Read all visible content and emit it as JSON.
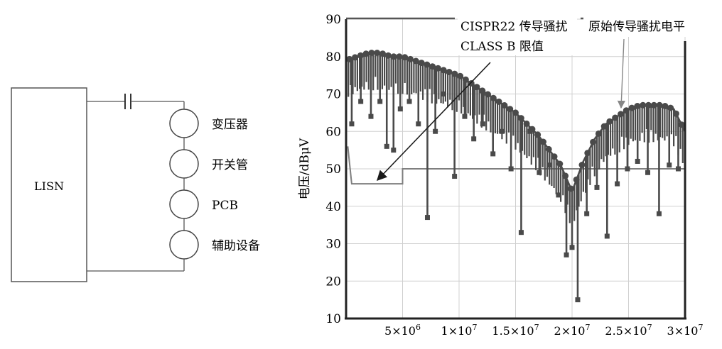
{
  "colors": {
    "line": "#333333",
    "limit": "#7f7f7f",
    "data": "#4a4a4a",
    "grid": "#d0d0d0"
  },
  "circuit": {
    "lisn_label": "LISN",
    "components": [
      "变压器",
      "开关管",
      "PCB",
      "辅助设备"
    ]
  },
  "chart_data": {
    "type": "line",
    "xlabel": "",
    "ylabel": "电压/dBμV",
    "ylim": [
      10,
      90
    ],
    "xlim": [
      0,
      30000000.0
    ],
    "y_ticks": [
      "10",
      "20",
      "30",
      "40",
      "50",
      "60",
      "70",
      "80",
      "90"
    ],
    "x_ticks": [
      {
        "value": 5000000.0,
        "mant": "5×10",
        "exp": "6"
      },
      {
        "value": 10000000.0,
        "mant": "1×10",
        "exp": "7"
      },
      {
        "value": 15000000.0,
        "mant": "1.5×10",
        "exp": "7"
      },
      {
        "value": 20000000.0,
        "mant": "2×10",
        "exp": "7"
      },
      {
        "value": 25000000.0,
        "mant": "2.5×10",
        "exp": "7"
      },
      {
        "value": 30000000.0,
        "mant": "3×10",
        "exp": "7"
      }
    ],
    "annotations": {
      "limit_line1": "CISPR22 传导骚扰",
      "limit_line2": "CLASS B 限值",
      "original": "原始传导骚扰电平"
    },
    "series": [
      {
        "role": "limit",
        "x": [
          150000.0,
          500000.0,
          500000.0,
          5000000.0,
          5000000.0,
          30000000.0
        ],
        "y": [
          56,
          46,
          46,
          46,
          50,
          50
        ]
      },
      {
        "role": "envelope",
        "x": [
          0,
          1000000.0,
          2000000.0,
          3000000.0,
          4000000.0,
          5000000.0,
          6000000.0,
          7000000.0,
          8000000.0,
          9000000.0,
          10000000.0,
          11000000.0,
          12000000.0,
          13000000.0,
          14000000.0,
          15000000.0,
          16000000.0,
          17000000.0,
          18000000.0,
          19000000.0,
          20000000.0,
          20500000.0,
          21000000.0,
          22000000.0,
          23000000.0,
          24000000.0,
          25000000.0,
          26000000.0,
          27000000.0,
          28000000.0,
          29000000.0,
          30000000.0
        ],
        "y": [
          79,
          80,
          81,
          81,
          80,
          80,
          79,
          78,
          77,
          76,
          75,
          73,
          71,
          69,
          67,
          65,
          62,
          59,
          55,
          51,
          44,
          48,
          52,
          58,
          62,
          64,
          66,
          67,
          67,
          67,
          66,
          60
        ]
      },
      {
        "role": "dips",
        "x": [
          500000.0,
          1300000.0,
          2200000.0,
          3000000.0,
          3600000.0,
          4200000.0,
          4800000.0,
          5600000.0,
          6400000.0,
          7200000.0,
          7900000.0,
          8600000.0,
          9600000.0,
          10500000.0,
          11300000.0,
          12100000.0,
          13000000.0,
          13800000.0,
          14600000.0,
          15500000.0,
          16300000.0,
          17100000.0,
          18000000.0,
          18800000.0,
          19500000.0,
          20000000.0,
          20500000.0,
          21300000.0,
          22200000.0,
          23100000.0,
          24000000.0,
          24900000.0,
          25800000.0,
          26700000.0,
          27700000.0,
          28600000.0,
          29400000.0
        ],
        "y": [
          62,
          68,
          64,
          68,
          56,
          55,
          66,
          68,
          62,
          37,
          60,
          70,
          48,
          64,
          58,
          62,
          54,
          60,
          50,
          33,
          60,
          49,
          51,
          43,
          27,
          29,
          15,
          38,
          45,
          32,
          46,
          50,
          52,
          49,
          38,
          51,
          50
        ]
      }
    ]
  }
}
